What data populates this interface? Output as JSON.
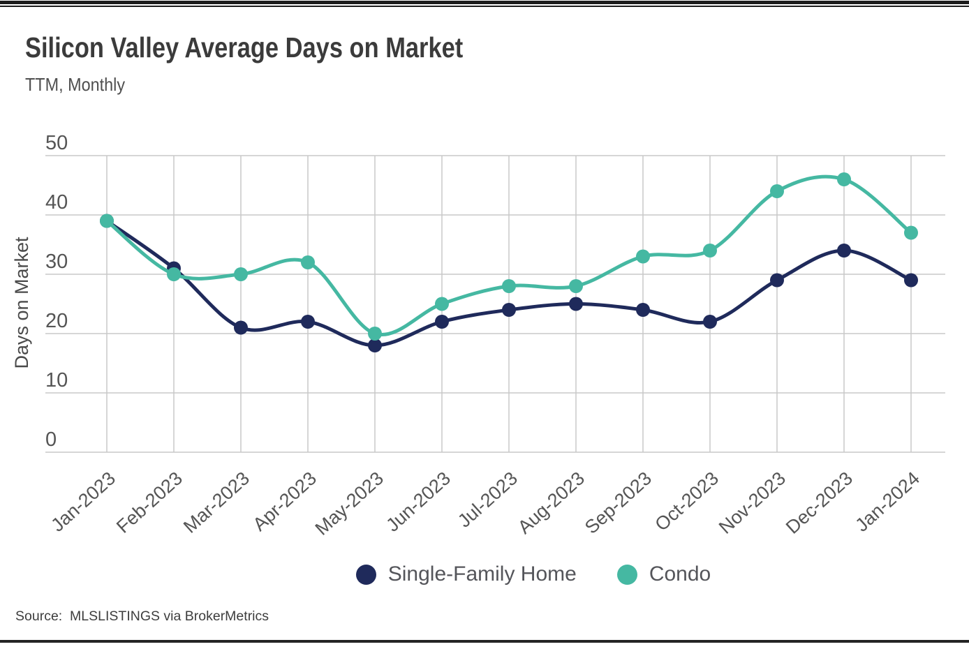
{
  "header": {
    "title": "Silicon Valley Average Days on Market",
    "subtitle": "TTM, Monthly"
  },
  "source_note": "Source:  MLSLISTINGS via BrokerMetrics",
  "chart_data": {
    "type": "line",
    "title": "Silicon Valley Average Days on Market",
    "subtitle": "TTM, Monthly",
    "categories": [
      "Jan-2023",
      "Feb-2023",
      "Mar-2023",
      "Apr-2023",
      "May-2023",
      "Jun-2023",
      "Jul-2023",
      "Aug-2023",
      "Sep-2023",
      "Oct-2023",
      "Nov-2023",
      "Dec-2023",
      "Jan-2024"
    ],
    "series": [
      {
        "name": "Single-Family Home",
        "color": "#1f2a5b",
        "values": [
          39,
          31,
          21,
          22,
          18,
          22,
          24,
          25,
          24,
          22,
          29,
          34,
          29
        ]
      },
      {
        "name": "Condo",
        "color": "#45b8a2",
        "values": [
          39,
          30,
          30,
          32,
          20,
          25,
          28,
          28,
          33,
          34,
          44,
          46,
          37
        ]
      }
    ],
    "xlabel": "",
    "ylabel": "Days on Market",
    "ylim": [
      0,
      50
    ],
    "yticks": [
      0,
      10,
      20,
      30,
      40,
      50
    ],
    "grid": true,
    "curve": "smooth",
    "legend_position": "bottom",
    "gridline_color": "#c9c9c9",
    "tick_text_color": "#555555",
    "axis_title_color": "#4a4a4a"
  }
}
